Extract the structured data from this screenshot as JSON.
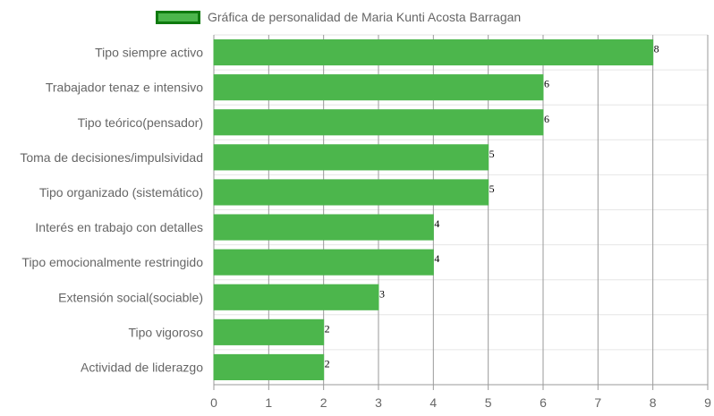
{
  "chart_data": {
    "type": "bar",
    "orientation": "horizontal",
    "categories": [
      "Tipo siempre activo",
      "Trabajador tenaz e intensivo",
      "Tipo teórico(pensador)",
      "Toma de decisiones/impulsividad",
      "Tipo organizado (sistemático)",
      "Interés en trabajo con detalles",
      "Tipo emocionalmente restringido",
      "Extensión social(sociable)",
      "Tipo vigoroso",
      "Actividad de liderazgo"
    ],
    "series": [
      {
        "name": "Gráfica de personalidad de Maria Kunti Acosta Barragan",
        "values": [
          8,
          6,
          6,
          5,
          5,
          4,
          4,
          3,
          2,
          2
        ],
        "color": "#4cb64c",
        "border_color": "#0f7a0f"
      }
    ],
    "xlim": [
      0,
      9
    ],
    "x_ticks": [
      "0",
      "1",
      "2",
      "3",
      "4",
      "5",
      "6",
      "7",
      "8",
      "9"
    ],
    "grid": true,
    "legend_position": "top",
    "data_labels": [
      "8",
      "6",
      "6",
      "5",
      "5",
      "4",
      "4",
      "3",
      "2",
      "2"
    ]
  }
}
